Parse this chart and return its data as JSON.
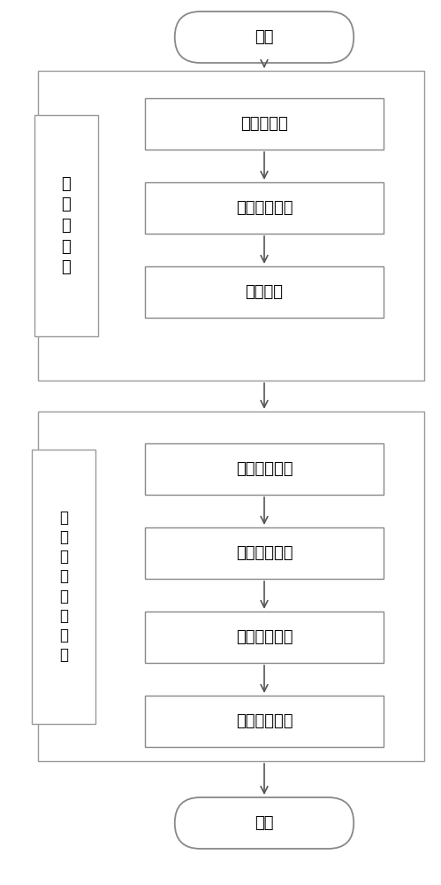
{
  "bg_color": "#ffffff",
  "start_label": "开始",
  "end_label": "结束",
  "process_boxes": [
    "图像归一化",
    "图像网格划分",
    "图像存储",
    "设定初始阈值",
    "设定梯度阈值",
    "目标区域识别",
    "目标区域分割"
  ],
  "group1_label": "图\n像\n预\n处\n理",
  "group2_label": "太\n阳\n活\n动\n目\n标\n区\n域",
  "box_facecolor": "#ffffff",
  "box_edgecolor": "#888888",
  "group_edgecolor": "#999999",
  "label_edgecolor": "#999999",
  "arrow_color": "#333333",
  "text_color": "#000000",
  "font_size": 13,
  "label_font_size": 13
}
